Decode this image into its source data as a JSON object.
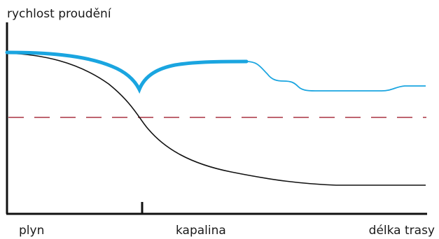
{
  "diagram": {
    "y_axis_label": "rychlost proudění",
    "x_labels": {
      "left": "plyn",
      "middle": "kapalina",
      "right": "délka trasy"
    },
    "colors": {
      "blue_curve": "#1aa5e0",
      "black_curve": "#111111",
      "dashed_line": "#a83240",
      "axes": "#111111"
    }
  }
}
